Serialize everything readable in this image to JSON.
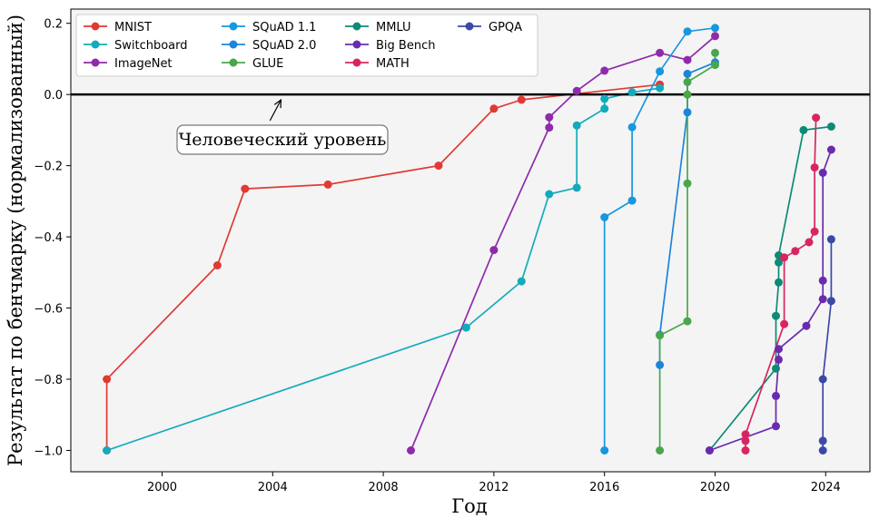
{
  "chart_data": {
    "type": "line",
    "title": "",
    "xlabel": "Год",
    "ylabel": "Результат по бенчмарку (нормализованный)",
    "xlim": [
      1996.7,
      2025.6
    ],
    "ylim": [
      -1.06,
      0.24
    ],
    "x_ticks": [
      2000,
      2004,
      2008,
      2012,
      2016,
      2020,
      2024
    ],
    "y_ticks": [
      0.2,
      0.0,
      -0.2,
      -0.4,
      -0.6,
      -0.8,
      -1.0
    ],
    "x_tick_labels": [
      "2000",
      "2004",
      "2008",
      "2012",
      "2016",
      "2020",
      "2024"
    ],
    "y_tick_labels": [
      "0.2",
      "0.0",
      "−0.2",
      "−0.4",
      "−0.6",
      "−0.8",
      "−1.0"
    ],
    "grid": false,
    "legend_position": "top-left",
    "legend_columns": 4,
    "background_color": "#f4f4f4",
    "reference_line": {
      "y": 0.0,
      "color": "#000000"
    },
    "annotation": {
      "text": "Человеческий уровень",
      "arrow_target": [
        2004.3,
        -0.005
      ],
      "box_anchor": [
        2004.0,
        -0.12
      ]
    },
    "series": [
      {
        "name": "MNIST",
        "color": "#e03a33",
        "points": [
          [
            1998,
            -1.0
          ],
          [
            1998,
            -0.8
          ],
          [
            2002,
            -0.48
          ],
          [
            2003,
            -0.265
          ],
          [
            2006,
            -0.253
          ],
          [
            2010,
            -0.2
          ],
          [
            2012,
            -0.04
          ],
          [
            2013,
            -0.015
          ],
          [
            2018,
            0.028
          ]
        ]
      },
      {
        "name": "Switchboard",
        "color": "#12abbc",
        "points": [
          [
            1998,
            -1.0
          ],
          [
            2011,
            -0.655
          ],
          [
            2013,
            -0.525
          ],
          [
            2014,
            -0.28
          ],
          [
            2015,
            -0.262
          ],
          [
            2015,
            -0.087
          ],
          [
            2016,
            -0.04
          ],
          [
            2016,
            -0.012
          ],
          [
            2017,
            0.006
          ],
          [
            2018,
            0.018
          ]
        ]
      },
      {
        "name": "ImageNet",
        "color": "#8f2aad",
        "points": [
          [
            2009,
            -1.0
          ],
          [
            2012,
            -0.437
          ],
          [
            2014,
            -0.093
          ],
          [
            2014,
            -0.064
          ],
          [
            2015,
            0.01
          ],
          [
            2016,
            0.067
          ],
          [
            2018,
            0.117
          ],
          [
            2019,
            0.097
          ],
          [
            2020,
            0.164
          ]
        ]
      },
      {
        "name": "SQuAD 1.1",
        "color": "#1697e0",
        "points": [
          [
            2016,
            -1.0
          ],
          [
            2016,
            -0.345
          ],
          [
            2017,
            -0.298
          ],
          [
            2017,
            -0.092
          ],
          [
            2018,
            0.065
          ],
          [
            2019,
            0.177
          ],
          [
            2020,
            0.187
          ]
        ]
      },
      {
        "name": "SQuAD 2.0",
        "color": "#1b84db",
        "points": [
          [
            2018,
            -0.76
          ],
          [
            2018,
            -0.675
          ],
          [
            2019,
            -0.05
          ],
          [
            2019,
            0.058
          ],
          [
            2020,
            0.09
          ]
        ]
      },
      {
        "name": "GLUE",
        "color": "#4aa64b",
        "points": [
          [
            2018,
            -1.0
          ],
          [
            2018,
            -0.677
          ],
          [
            2019,
            -0.637
          ],
          [
            2019,
            -0.25
          ],
          [
            2019,
            0.0
          ],
          [
            2019,
            0.035
          ],
          [
            2020,
            0.083
          ],
          [
            2020,
            0.117
          ]
        ]
      },
      {
        "name": "MMLU",
        "color": "#0e8a76",
        "points": [
          [
            2019.8,
            -1.0
          ],
          [
            2022.2,
            -0.77
          ],
          [
            2022.2,
            -0.622
          ],
          [
            2022.3,
            -0.528
          ],
          [
            2022.3,
            -0.472
          ],
          [
            2022.3,
            -0.452
          ],
          [
            2023.2,
            -0.1
          ],
          [
            2024.2,
            -0.09
          ]
        ]
      },
      {
        "name": "Big Bench",
        "color": "#6a2bb0",
        "points": [
          [
            2019.8,
            -1.0
          ],
          [
            2022.2,
            -0.932
          ],
          [
            2022.2,
            -0.847
          ],
          [
            2022.3,
            -0.745
          ],
          [
            2022.3,
            -0.715
          ],
          [
            2023.3,
            -0.65
          ],
          [
            2023.9,
            -0.575
          ],
          [
            2023.9,
            -0.523
          ],
          [
            2023.9,
            -0.22
          ],
          [
            2024.2,
            -0.155
          ]
        ]
      },
      {
        "name": "MATH",
        "color": "#d9255f",
        "points": [
          [
            2021.1,
            -1.0
          ],
          [
            2021.1,
            -0.973
          ],
          [
            2021.1,
            -0.955
          ],
          [
            2022.5,
            -0.645
          ],
          [
            2022.5,
            -0.458
          ],
          [
            2022.9,
            -0.44
          ],
          [
            2023.4,
            -0.415
          ],
          [
            2023.6,
            -0.385
          ],
          [
            2023.6,
            -0.205
          ],
          [
            2023.65,
            -0.065
          ]
        ]
      },
      {
        "name": "GPQA",
        "color": "#3a49a8",
        "points": [
          [
            2023.9,
            -1.0
          ],
          [
            2023.9,
            -0.973
          ],
          [
            2023.9,
            -0.8
          ],
          [
            2024.2,
            -0.58
          ],
          [
            2024.2,
            -0.407
          ]
        ]
      }
    ]
  }
}
